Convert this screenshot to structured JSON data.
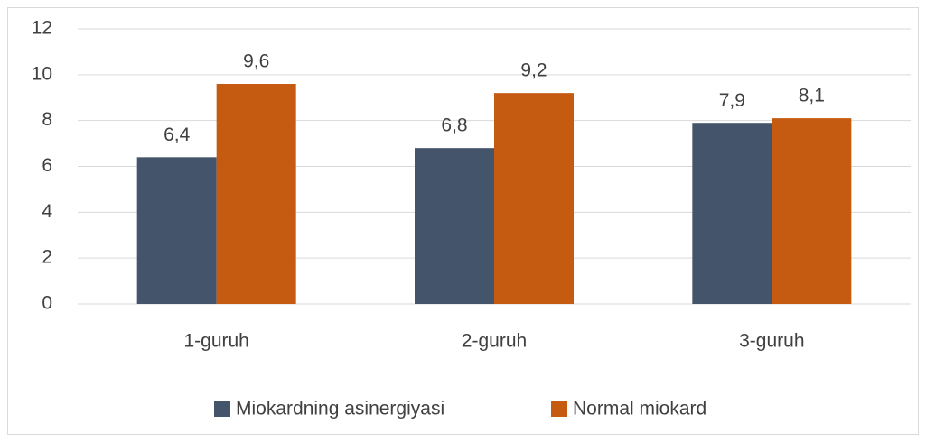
{
  "chart_data": {
    "type": "bar",
    "categories": [
      "1-guruh",
      "2-guruh",
      "3-guruh"
    ],
    "series": [
      {
        "name": "Miokardning asinergiyasi",
        "color": "#44546a",
        "values": [
          6.4,
          6.8,
          7.9
        ],
        "value_labels": [
          "6,4",
          "6,8",
          "7,9"
        ]
      },
      {
        "name": "Normal miokard",
        "color": "#c55a11",
        "values": [
          9.6,
          9.2,
          8.1
        ],
        "value_labels": [
          "9,6",
          "9,2",
          "8,1"
        ]
      }
    ],
    "ylim": [
      0,
      12
    ],
    "yticks": [
      0,
      2,
      4,
      6,
      8,
      10,
      12
    ],
    "grid": true,
    "legend": "bottom"
  }
}
